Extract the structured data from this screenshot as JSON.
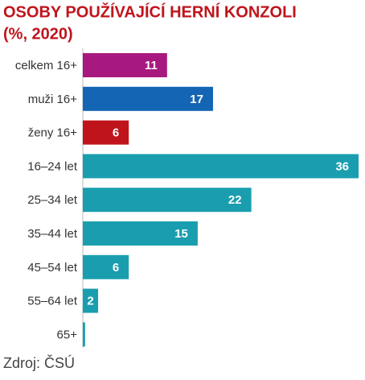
{
  "chart_data": {
    "type": "bar",
    "orientation": "horizontal",
    "title": "OSOBY POUŽÍVAJÍCÍ HERNÍ KONZOLI",
    "subtitle": "(%, 2020)",
    "categories": [
      "celkem 16+",
      "muži 16+",
      "ženy 16+",
      "16–24 let",
      "25–34 let",
      "35–44 let",
      "45–54 let",
      "55–64 let",
      "65+"
    ],
    "values": [
      11,
      17,
      6,
      36,
      22,
      15,
      6,
      2,
      0.3
    ],
    "colors": [
      "#a8197f",
      "#1565b5",
      "#c0141c",
      "#1a9eaf",
      "#1a9eaf",
      "#1a9eaf",
      "#1a9eaf",
      "#1a9eaf",
      "#1a9eaf"
    ],
    "xlim": [
      0,
      36
    ],
    "source": "Zdroj: ČSÚ"
  }
}
